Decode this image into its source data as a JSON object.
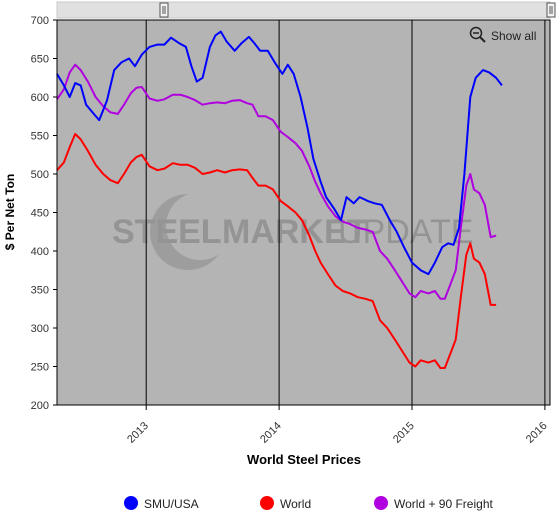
{
  "chart_data": {
    "type": "line",
    "title": "",
    "xlabel": "World Steel Prices",
    "ylabel": "$ Per Net Ton",
    "ylim": [
      200,
      700
    ],
    "yticks": [
      200,
      250,
      300,
      350,
      400,
      450,
      500,
      550,
      600,
      650,
      700
    ],
    "xlim": [
      "2012-05-01",
      "2016-01-15"
    ],
    "xticks": [
      {
        "label": "2013",
        "date": "2013-01-01"
      },
      {
        "label": "2014",
        "date": "2014-01-01"
      },
      {
        "label": "2015",
        "date": "2015-01-01"
      },
      {
        "label": "2016",
        "date": "2016-01-01"
      }
    ],
    "grid": false,
    "legend": "bottom",
    "series": [
      {
        "name": "SMU/USA",
        "color": "#0000ff",
        "points": [
          [
            "2012-05-01",
            630
          ],
          [
            "2012-05-20",
            615
          ],
          [
            "2012-06-05",
            600
          ],
          [
            "2012-06-20",
            618
          ],
          [
            "2012-07-05",
            615
          ],
          [
            "2012-07-20",
            590
          ],
          [
            "2012-08-10",
            578
          ],
          [
            "2012-08-25",
            570
          ],
          [
            "2012-09-15",
            595
          ],
          [
            "2012-10-05",
            635
          ],
          [
            "2012-10-25",
            645
          ],
          [
            "2012-11-15",
            650
          ],
          [
            "2012-12-01",
            640
          ],
          [
            "2012-12-20",
            655
          ],
          [
            "2013-01-10",
            665
          ],
          [
            "2013-02-01",
            668
          ],
          [
            "2013-02-20",
            668
          ],
          [
            "2013-03-10",
            677
          ],
          [
            "2013-04-01",
            670
          ],
          [
            "2013-04-20",
            665
          ],
          [
            "2013-05-05",
            640
          ],
          [
            "2013-05-20",
            620
          ],
          [
            "2013-06-05",
            625
          ],
          [
            "2013-06-25",
            665
          ],
          [
            "2013-07-10",
            680
          ],
          [
            "2013-07-25",
            685
          ],
          [
            "2013-08-10",
            672
          ],
          [
            "2013-09-01",
            660
          ],
          [
            "2013-09-20",
            670
          ],
          [
            "2013-10-10",
            678
          ],
          [
            "2013-10-25",
            670
          ],
          [
            "2013-11-10",
            660
          ],
          [
            "2013-12-01",
            660
          ],
          [
            "2013-12-20",
            645
          ],
          [
            "2014-01-10",
            630
          ],
          [
            "2014-01-25",
            642
          ],
          [
            "2014-02-10",
            630
          ],
          [
            "2014-03-01",
            600
          ],
          [
            "2014-03-20",
            560
          ],
          [
            "2014-04-05",
            520
          ],
          [
            "2014-04-25",
            490
          ],
          [
            "2014-05-10",
            470
          ],
          [
            "2014-06-01",
            455
          ],
          [
            "2014-06-20",
            440
          ],
          [
            "2014-07-05",
            470
          ],
          [
            "2014-07-25",
            462
          ],
          [
            "2014-08-10",
            470
          ],
          [
            "2014-09-01",
            465
          ],
          [
            "2014-09-20",
            462
          ],
          [
            "2014-10-10",
            460
          ],
          [
            "2014-11-01",
            440
          ],
          [
            "2014-11-20",
            425
          ],
          [
            "2014-12-10",
            405
          ],
          [
            "2015-01-01",
            385
          ],
          [
            "2015-01-25",
            375
          ],
          [
            "2015-02-15",
            370
          ],
          [
            "2015-03-05",
            385
          ],
          [
            "2015-03-25",
            405
          ],
          [
            "2015-04-10",
            410
          ],
          [
            "2015-04-25",
            408
          ],
          [
            "2015-05-10",
            430
          ],
          [
            "2015-05-25",
            500
          ],
          [
            "2015-06-10",
            600
          ],
          [
            "2015-06-25",
            625
          ],
          [
            "2015-07-15",
            635
          ],
          [
            "2015-08-01",
            632
          ],
          [
            "2015-08-20",
            625
          ],
          [
            "2015-09-05",
            615
          ]
        ]
      },
      {
        "name": "World",
        "color": "#ff0000",
        "points": [
          [
            "2012-05-01",
            505
          ],
          [
            "2012-05-20",
            515
          ],
          [
            "2012-06-05",
            535
          ],
          [
            "2012-06-20",
            552
          ],
          [
            "2012-07-05",
            545
          ],
          [
            "2012-07-25",
            530
          ],
          [
            "2012-08-15",
            512
          ],
          [
            "2012-09-05",
            500
          ],
          [
            "2012-09-25",
            492
          ],
          [
            "2012-10-15",
            488
          ],
          [
            "2012-11-01",
            500
          ],
          [
            "2012-11-20",
            515
          ],
          [
            "2012-12-05",
            522
          ],
          [
            "2012-12-20",
            525
          ],
          [
            "2013-01-10",
            510
          ],
          [
            "2013-02-01",
            505
          ],
          [
            "2013-02-20",
            507
          ],
          [
            "2013-03-15",
            514
          ],
          [
            "2013-04-05",
            512
          ],
          [
            "2013-04-25",
            512
          ],
          [
            "2013-05-15",
            508
          ],
          [
            "2013-06-05",
            500
          ],
          [
            "2013-06-25",
            502
          ],
          [
            "2013-07-15",
            505
          ],
          [
            "2013-08-05",
            502
          ],
          [
            "2013-08-25",
            505
          ],
          [
            "2013-09-15",
            506
          ],
          [
            "2013-10-05",
            505
          ],
          [
            "2013-10-20",
            495
          ],
          [
            "2013-11-05",
            485
          ],
          [
            "2013-11-25",
            485
          ],
          [
            "2013-12-15",
            480
          ],
          [
            "2014-01-05",
            465
          ],
          [
            "2014-01-25",
            458
          ],
          [
            "2014-02-15",
            450
          ],
          [
            "2014-03-05",
            440
          ],
          [
            "2014-03-25",
            420
          ],
          [
            "2014-04-10",
            400
          ],
          [
            "2014-04-25",
            385
          ],
          [
            "2014-05-15",
            370
          ],
          [
            "2014-06-05",
            355
          ],
          [
            "2014-06-25",
            348
          ],
          [
            "2014-07-15",
            345
          ],
          [
            "2014-08-05",
            340
          ],
          [
            "2014-08-25",
            338
          ],
          [
            "2014-09-15",
            335
          ],
          [
            "2014-10-05",
            310
          ],
          [
            "2014-10-25",
            300
          ],
          [
            "2014-11-15",
            285
          ],
          [
            "2014-12-05",
            270
          ],
          [
            "2014-12-25",
            255
          ],
          [
            "2015-01-10",
            250
          ],
          [
            "2015-01-25",
            258
          ],
          [
            "2015-02-15",
            255
          ],
          [
            "2015-03-05",
            258
          ],
          [
            "2015-03-20",
            248
          ],
          [
            "2015-04-01",
            248
          ],
          [
            "2015-04-15",
            265
          ],
          [
            "2015-05-01",
            285
          ],
          [
            "2015-05-15",
            340
          ],
          [
            "2015-05-30",
            395
          ],
          [
            "2015-06-10",
            410
          ],
          [
            "2015-06-20",
            390
          ],
          [
            "2015-07-05",
            385
          ],
          [
            "2015-07-20",
            370
          ],
          [
            "2015-08-05",
            330
          ],
          [
            "2015-08-20",
            330
          ]
        ]
      },
      {
        "name": "World + 90 Freight",
        "color": "#b000e0",
        "points": [
          [
            "2012-05-01",
            597
          ],
          [
            "2012-05-20",
            610
          ],
          [
            "2012-06-05",
            632
          ],
          [
            "2012-06-20",
            642
          ],
          [
            "2012-07-05",
            635
          ],
          [
            "2012-07-25",
            620
          ],
          [
            "2012-08-15",
            600
          ],
          [
            "2012-09-05",
            588
          ],
          [
            "2012-09-25",
            580
          ],
          [
            "2012-10-15",
            578
          ],
          [
            "2012-11-01",
            590
          ],
          [
            "2012-11-20",
            605
          ],
          [
            "2012-12-05",
            612
          ],
          [
            "2012-12-20",
            613
          ],
          [
            "2013-01-10",
            598
          ],
          [
            "2013-02-01",
            595
          ],
          [
            "2013-02-20",
            597
          ],
          [
            "2013-03-15",
            603
          ],
          [
            "2013-04-05",
            603
          ],
          [
            "2013-04-25",
            600
          ],
          [
            "2013-05-15",
            596
          ],
          [
            "2013-06-05",
            590
          ],
          [
            "2013-06-25",
            592
          ],
          [
            "2013-07-15",
            593
          ],
          [
            "2013-08-05",
            592
          ],
          [
            "2013-08-25",
            595
          ],
          [
            "2013-09-15",
            596
          ],
          [
            "2013-10-05",
            592
          ],
          [
            "2013-10-20",
            590
          ],
          [
            "2013-11-05",
            575
          ],
          [
            "2013-11-25",
            575
          ],
          [
            "2013-12-15",
            570
          ],
          [
            "2014-01-05",
            555
          ],
          [
            "2014-01-25",
            548
          ],
          [
            "2014-02-15",
            540
          ],
          [
            "2014-03-05",
            530
          ],
          [
            "2014-03-25",
            510
          ],
          [
            "2014-04-10",
            490
          ],
          [
            "2014-04-25",
            475
          ],
          [
            "2014-05-15",
            458
          ],
          [
            "2014-06-05",
            445
          ],
          [
            "2014-06-25",
            438
          ],
          [
            "2014-07-15",
            435
          ],
          [
            "2014-08-05",
            430
          ],
          [
            "2014-08-25",
            428
          ],
          [
            "2014-09-15",
            425
          ],
          [
            "2014-10-05",
            400
          ],
          [
            "2014-10-25",
            390
          ],
          [
            "2014-11-15",
            375
          ],
          [
            "2014-12-05",
            360
          ],
          [
            "2014-12-25",
            345
          ],
          [
            "2015-01-10",
            340
          ],
          [
            "2015-01-25",
            348
          ],
          [
            "2015-02-15",
            345
          ],
          [
            "2015-03-05",
            348
          ],
          [
            "2015-03-20",
            338
          ],
          [
            "2015-04-01",
            338
          ],
          [
            "2015-04-15",
            355
          ],
          [
            "2015-05-01",
            375
          ],
          [
            "2015-05-15",
            430
          ],
          [
            "2015-05-30",
            485
          ],
          [
            "2015-06-10",
            500
          ],
          [
            "2015-06-20",
            480
          ],
          [
            "2015-07-05",
            475
          ],
          [
            "2015-07-20",
            460
          ],
          [
            "2015-08-05",
            418
          ],
          [
            "2015-08-20",
            420
          ]
        ]
      }
    ]
  },
  "toolbar": {
    "show_all": "Show all",
    "zoom_icon": "zoom-out-icon"
  },
  "watermark": {
    "word1": "STEEL",
    "word2": "MARKET",
    "word3": "UPDATE"
  },
  "colors": {
    "plot_bg": "#b4b4b4",
    "navigator_bg": "#e0e0e0",
    "frame": "#000000"
  }
}
